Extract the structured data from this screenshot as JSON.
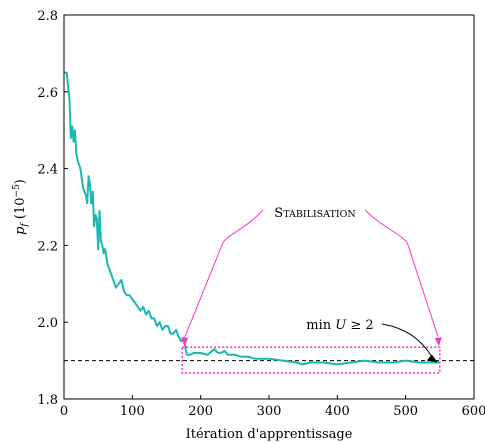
{
  "chart_data": {
    "type": "line",
    "xlabel": "Itération d'apprentissage",
    "ylabel": "p_f (10^-5)",
    "ylabel_parts": {
      "var": "p",
      "sub": "f",
      "unit_open": " (10",
      "exp": "−5",
      "unit_close": ")"
    },
    "xlim": [
      0,
      600
    ],
    "ylim": [
      1.8,
      2.8
    ],
    "xticks": [
      0,
      100,
      200,
      300,
      400,
      500,
      600
    ],
    "yticks": [
      1.8,
      2.0,
      2.2,
      2.4,
      2.6,
      2.8
    ],
    "xtick_labels": [
      "0",
      "100",
      "200",
      "300",
      "400",
      "500",
      "600"
    ],
    "ytick_labels": [
      "1.8",
      "2.0",
      "2.2",
      "2.4",
      "2.6",
      "2.8"
    ],
    "grid": false,
    "reference_line": {
      "y": 1.9,
      "style": "dashed",
      "color": "#000000"
    },
    "series": [
      {
        "color": "#1ab8b0",
        "x": [
          0,
          4,
          8,
          10,
          12,
          14,
          16,
          18,
          20,
          24,
          28,
          30,
          32,
          34,
          36,
          38,
          40,
          42,
          44,
          46,
          48,
          50,
          52,
          54,
          56,
          58,
          60,
          64,
          68,
          72,
          76,
          80,
          84,
          88,
          92,
          96,
          100,
          104,
          108,
          112,
          116,
          120,
          124,
          128,
          132,
          136,
          140,
          144,
          148,
          152,
          156,
          160,
          164,
          168,
          172,
          176,
          178,
          180,
          185,
          190,
          200,
          210,
          220,
          225,
          230,
          235,
          240,
          250,
          260,
          270,
          280,
          300,
          320,
          340,
          350,
          360,
          380,
          400,
          420,
          440,
          460,
          480,
          500,
          520,
          540,
          550
        ],
        "y": [
          2.65,
          2.65,
          2.58,
          2.48,
          2.51,
          2.47,
          2.5,
          2.44,
          2.42,
          2.4,
          2.35,
          2.34,
          2.33,
          2.31,
          2.38,
          2.36,
          2.31,
          2.34,
          2.25,
          2.28,
          2.27,
          2.19,
          2.29,
          2.21,
          2.2,
          2.18,
          2.19,
          2.15,
          2.13,
          2.11,
          2.09,
          2.1,
          2.11,
          2.08,
          2.07,
          2.07,
          2.06,
          2.05,
          2.04,
          2.03,
          2.04,
          2.02,
          2.03,
          2.01,
          2.01,
          1.99,
          2.0,
          1.98,
          1.99,
          1.99,
          1.97,
          1.97,
          1.98,
          1.96,
          1.95,
          1.96,
          1.93,
          1.915,
          1.915,
          1.92,
          1.92,
          1.915,
          1.93,
          1.92,
          1.92,
          1.925,
          1.915,
          1.915,
          1.91,
          1.91,
          1.905,
          1.905,
          1.9,
          1.895,
          1.89,
          1.895,
          1.895,
          1.89,
          1.895,
          1.9,
          1.895,
          1.895,
          1.9,
          1.895,
          1.895,
          1.895
        ]
      }
    ],
    "annotations": [
      {
        "label": "Stabilisation",
        "label_first": "S",
        "label_rest": "TABILISATION",
        "small_caps": true,
        "color": "#ff33cc",
        "box_x": [
          173,
          550
        ],
        "box_y": [
          1.868,
          1.935
        ]
      },
      {
        "label": "min U ≥ 2",
        "label_func": "min ",
        "label_var": "U",
        "label_rel": " ≥ 2",
        "arrow_color": "#000000",
        "target_x": 547,
        "target_y": 1.895
      }
    ]
  }
}
